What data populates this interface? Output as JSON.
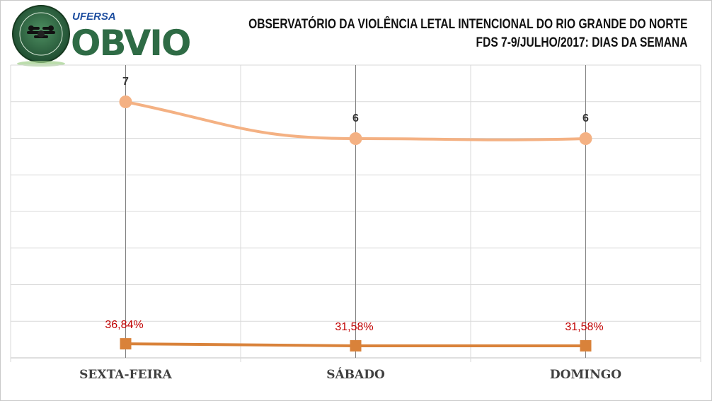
{
  "header": {
    "title": "OBSERVATÓRIO DA VIOLÊNCIA LETAL INTENCIONAL DO RIO GRANDE DO NORTE",
    "subtitle": "FDS 7-9/JULHO/2017:  DIAS DA SEMANA"
  },
  "logo": {
    "brand": "OBVIO",
    "institution": "UFERSA",
    "seal_text": "OBSERVATÓRIO DA VIOLÊNCIA LETAL INTENCIONAL",
    "seal_top": "OBVIO"
  },
  "colors": {
    "count_line": "#f4b183",
    "percent_line": "#d9823a",
    "percent_label": "#c00000",
    "grid": "#d9d9d9",
    "category_line": "#808080",
    "logo_green": "#2e6b45"
  },
  "chart_data": {
    "type": "line",
    "categories": [
      "SEXTA-FEIRA",
      "SÁBADO",
      "DOMINGO"
    ],
    "series": [
      {
        "values": [
          7,
          6,
          6
        ],
        "labels": [
          "7",
          "6",
          "6"
        ],
        "marker": "circle",
        "smooth": true
      },
      {
        "values": [
          36.84,
          31.58,
          31.58
        ],
        "labels": [
          "36,84%",
          "31,58%",
          "31,58%"
        ],
        "marker": "square"
      }
    ],
    "title": "",
    "xlabel": "",
    "ylabel": "",
    "grid": true,
    "legend": "none"
  }
}
